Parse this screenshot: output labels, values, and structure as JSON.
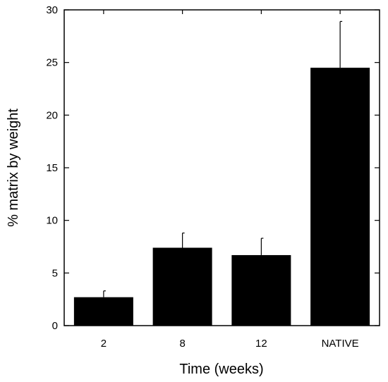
{
  "chart_data": {
    "type": "bar",
    "categories": [
      "2",
      "8",
      "12",
      "NATIVE"
    ],
    "values": [
      2.7,
      7.4,
      6.7,
      24.5
    ],
    "error_upper": [
      3.3,
      8.8,
      8.3,
      28.9
    ],
    "xlabel": "Time (weeks)",
    "ylabel": "% matrix by weight",
    "ylim": [
      0,
      30
    ],
    "yticks": [
      0,
      5,
      10,
      15,
      20,
      25,
      30
    ],
    "grid": false,
    "bar_color": "#000000"
  }
}
